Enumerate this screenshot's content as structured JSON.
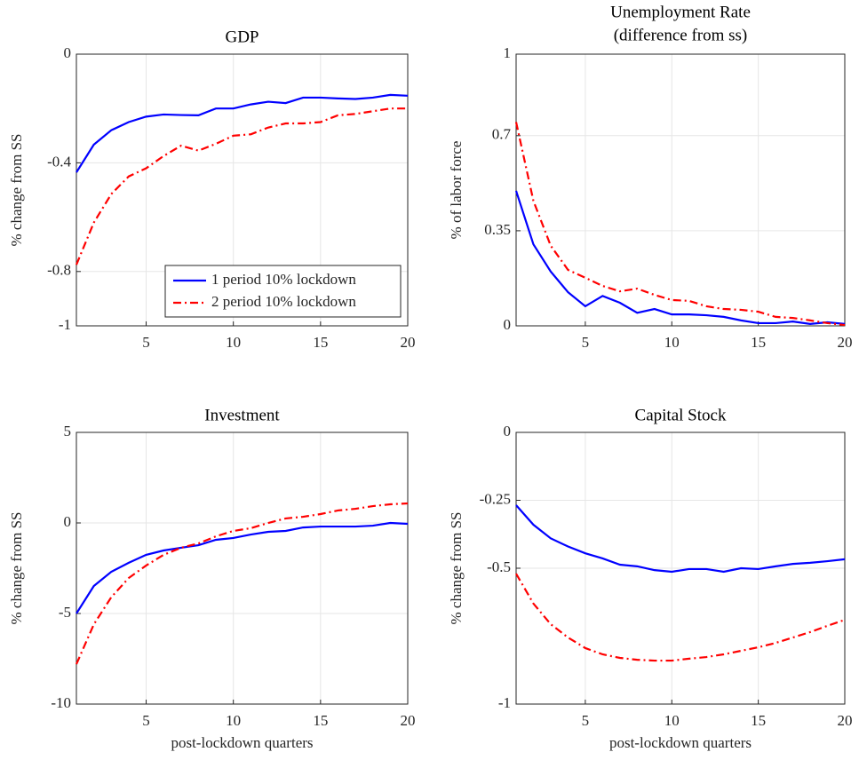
{
  "chart_data": [
    {
      "type": "line",
      "title": "GDP",
      "ylabel": "% change from SS",
      "x": [
        1,
        2,
        3,
        4,
        5,
        6,
        7,
        8,
        9,
        10,
        11,
        12,
        13,
        14,
        15,
        16,
        17,
        18,
        19,
        20
      ],
      "xlim": [
        1,
        20
      ],
      "xticks": [
        5,
        10,
        15,
        20
      ],
      "ylim": [
        -1,
        0
      ],
      "yticks": [
        -1,
        -0.8,
        -0.4,
        0
      ],
      "grid": true,
      "legend": "lower right",
      "series": [
        {
          "name": "1 period 10% lockdown",
          "color": "#0000ff",
          "linestyle": "solid",
          "values": [
            -0.435,
            -0.333,
            -0.28,
            -0.25,
            -0.23,
            -0.222,
            -0.224,
            -0.225,
            -0.2,
            -0.2,
            -0.185,
            -0.175,
            -0.18,
            -0.16,
            -0.16,
            -0.163,
            -0.165,
            -0.16,
            -0.15,
            -0.153
          ]
        },
        {
          "name": "2 period 10% lockdown",
          "color": "#ff0000",
          "linestyle": "dashdot",
          "values": [
            -0.775,
            -0.62,
            -0.515,
            -0.45,
            -0.42,
            -0.375,
            -0.337,
            -0.355,
            -0.33,
            -0.3,
            -0.295,
            -0.27,
            -0.255,
            -0.255,
            -0.25,
            -0.225,
            -0.22,
            -0.21,
            -0.2,
            -0.2
          ]
        }
      ]
    },
    {
      "type": "line",
      "title": "Unemployment Rate",
      "subtitle": "(difference from ss)",
      "ylabel": "% of labor force",
      "x": [
        1,
        2,
        3,
        4,
        5,
        6,
        7,
        8,
        9,
        10,
        11,
        12,
        13,
        14,
        15,
        16,
        17,
        18,
        19,
        20
      ],
      "xlim": [
        1,
        20
      ],
      "xticks": [
        5,
        10,
        15,
        20
      ],
      "ylim": [
        0,
        1
      ],
      "yticks": [
        0,
        0.35,
        0.7,
        1
      ],
      "grid": true,
      "series": [
        {
          "color": "#0000ff",
          "linestyle": "solid",
          "values": [
            0.497,
            0.3,
            0.2,
            0.124,
            0.072,
            0.11,
            0.085,
            0.048,
            0.062,
            0.042,
            0.042,
            0.039,
            0.033,
            0.02,
            0.01,
            0.01,
            0.016,
            0.007,
            0.013,
            0.007
          ]
        },
        {
          "color": "#ff0000",
          "linestyle": "dashdot",
          "values": [
            0.75,
            0.46,
            0.295,
            0.206,
            0.177,
            0.147,
            0.127,
            0.137,
            0.114,
            0.095,
            0.092,
            0.072,
            0.062,
            0.059,
            0.052,
            0.033,
            0.029,
            0.02,
            0.01,
            0.003
          ]
        }
      ]
    },
    {
      "type": "line",
      "title": "Investment",
      "ylabel": "% change from SS",
      "xlabel": "post-lockdown quarters",
      "x": [
        1,
        2,
        3,
        4,
        5,
        6,
        7,
        8,
        9,
        10,
        11,
        12,
        13,
        14,
        15,
        16,
        17,
        18,
        19,
        20
      ],
      "xlim": [
        1,
        20
      ],
      "xticks": [
        5,
        10,
        15,
        20
      ],
      "ylim": [
        -10,
        5
      ],
      "yticks": [
        -10,
        -5,
        0,
        5
      ],
      "grid": true,
      "series": [
        {
          "color": "#0000ff",
          "linestyle": "solid",
          "values": [
            -5,
            -3.48,
            -2.7,
            -2.2,
            -1.76,
            -1.52,
            -1.37,
            -1.23,
            -0.93,
            -0.83,
            -0.64,
            -0.49,
            -0.44,
            -0.25,
            -0.2,
            -0.2,
            -0.2,
            -0.15,
            0,
            -0.05
          ]
        },
        {
          "color": "#ff0000",
          "linestyle": "dashdot",
          "values": [
            -7.8,
            -5.6,
            -4.1,
            -3.04,
            -2.35,
            -1.76,
            -1.37,
            -1.13,
            -0.74,
            -0.44,
            -0.29,
            0,
            0.25,
            0.34,
            0.49,
            0.69,
            0.78,
            0.93,
            1.03,
            1.08
          ]
        }
      ]
    },
    {
      "type": "line",
      "title": "Capital Stock",
      "ylabel": "% change from SS",
      "xlabel": "post-lockdown quarters",
      "x": [
        1,
        2,
        3,
        4,
        5,
        6,
        7,
        8,
        9,
        10,
        11,
        12,
        13,
        14,
        15,
        16,
        17,
        18,
        19,
        20
      ],
      "xlim": [
        1,
        20
      ],
      "xticks": [
        5,
        10,
        15,
        20
      ],
      "ylim": [
        -1,
        0
      ],
      "yticks": [
        -1,
        -0.5,
        -0.25,
        0
      ],
      "grid": true,
      "series": [
        {
          "color": "#0000ff",
          "linestyle": "solid",
          "values": [
            -0.268,
            -0.34,
            -0.39,
            -0.42,
            -0.445,
            -0.464,
            -0.487,
            -0.493,
            -0.507,
            -0.513,
            -0.503,
            -0.503,
            -0.513,
            -0.5,
            -0.503,
            -0.493,
            -0.484,
            -0.48,
            -0.474,
            -0.467
          ]
        },
        {
          "color": "#ff0000",
          "linestyle": "dashdot",
          "values": [
            -0.52,
            -0.63,
            -0.706,
            -0.755,
            -0.794,
            -0.817,
            -0.83,
            -0.837,
            -0.84,
            -0.84,
            -0.833,
            -0.827,
            -0.817,
            -0.804,
            -0.791,
            -0.775,
            -0.755,
            -0.735,
            -0.712,
            -0.69
          ]
        }
      ]
    }
  ]
}
